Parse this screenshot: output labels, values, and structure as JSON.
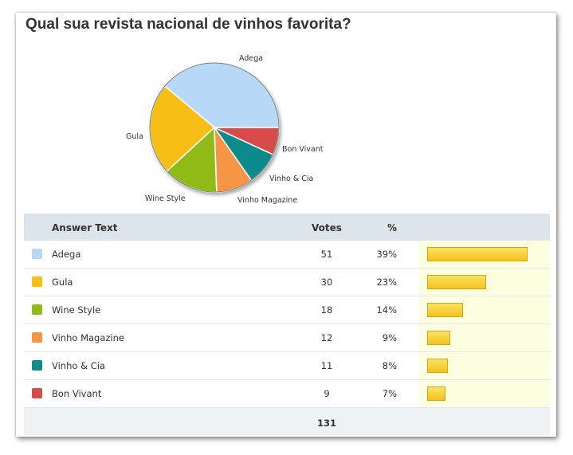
{
  "title": "Qual sua revista nacional de vinhos favorita?",
  "chart_data": {
    "type": "pie",
    "title": "Qual sua revista nacional de vinhos favorita?",
    "categories": [
      "Adega",
      "Gula",
      "Wine Style",
      "Vinho Magazine",
      "Vinho & Cia",
      "Bon Vivant"
    ],
    "values": [
      51,
      30,
      18,
      12,
      11,
      9
    ],
    "colors": [
      "#b7d8f7",
      "#f7bf18",
      "#90bb18",
      "#f79547",
      "#0e8b8a",
      "#d84b4b"
    ],
    "legend": "table below"
  },
  "table": {
    "headers": {
      "answer": "Answer Text",
      "votes": "Votes",
      "pct": "%"
    },
    "rows": [
      {
        "answer": "Adega",
        "votes": "51",
        "pct": "39%",
        "color": "#b7d8f7",
        "share": 0.39
      },
      {
        "answer": "Gula",
        "votes": "30",
        "pct": "23%",
        "color": "#f7bf18",
        "share": 0.23
      },
      {
        "answer": "Wine Style",
        "votes": "18",
        "pct": "14%",
        "color": "#90bb18",
        "share": 0.14
      },
      {
        "answer": "Vinho Magazine",
        "votes": "12",
        "pct": "9%",
        "color": "#f79547",
        "share": 0.09
      },
      {
        "answer": "Vinho & Cia",
        "votes": "11",
        "pct": "8%",
        "color": "#0e8b8a",
        "share": 0.08
      },
      {
        "answer": "Bon Vivant",
        "votes": "9",
        "pct": "7%",
        "color": "#d84b4b",
        "share": 0.07
      }
    ],
    "total": "131"
  }
}
